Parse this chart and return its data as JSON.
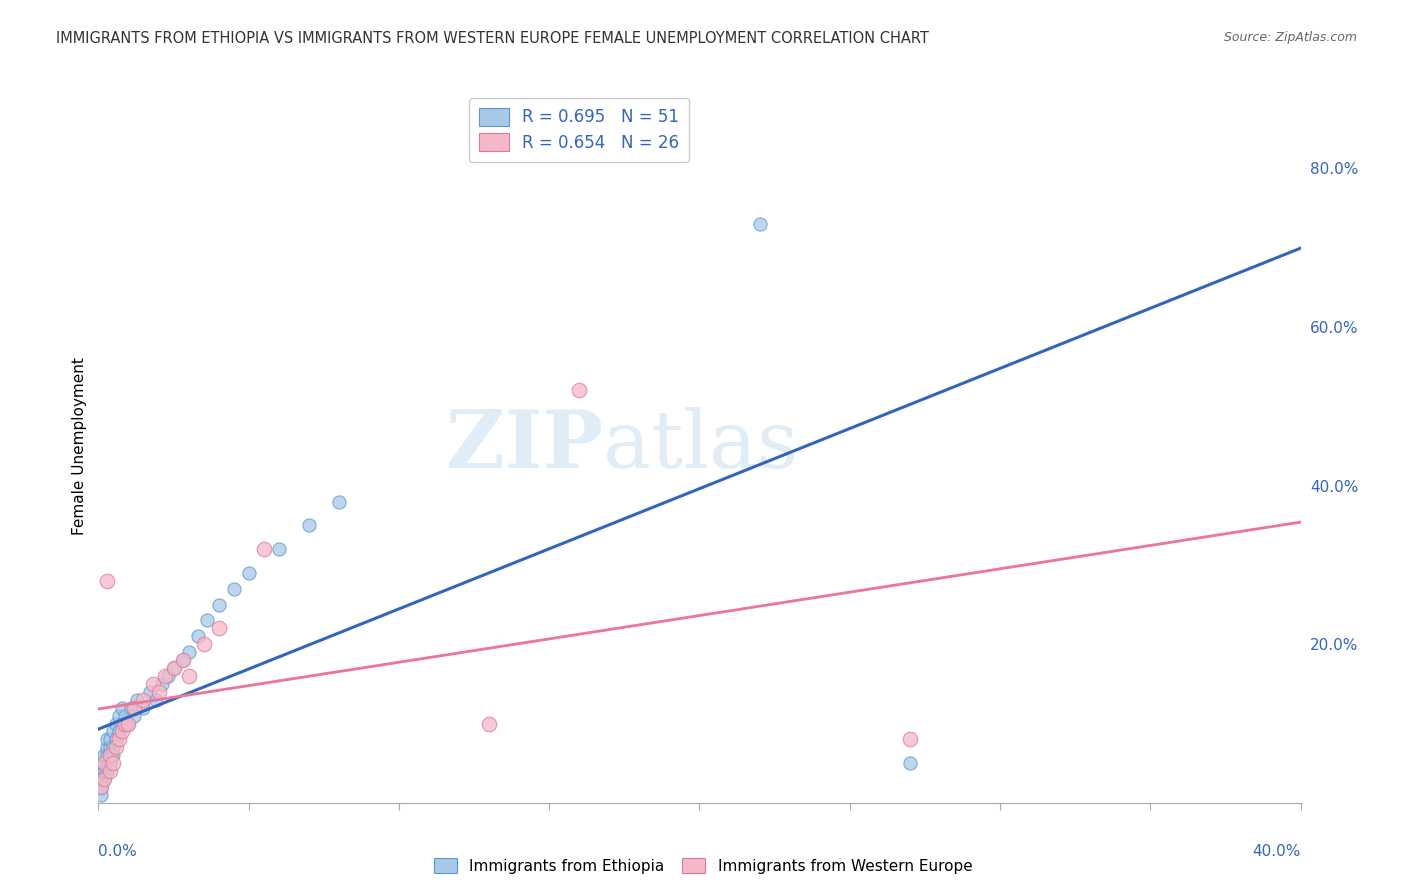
{
  "title": "IMMIGRANTS FROM ETHIOPIA VS IMMIGRANTS FROM WESTERN EUROPE FEMALE UNEMPLOYMENT CORRELATION CHART",
  "source": "Source: ZipAtlas.com",
  "ylabel": "Female Unemployment",
  "right_ytick_labels": [
    "",
    "20.0%",
    "40.0%",
    "60.0%",
    "80.0%"
  ],
  "right_yticks": [
    0.0,
    0.2,
    0.4,
    0.6,
    0.8
  ],
  "legend_r1": "R = 0.695",
  "legend_n1": "N = 51",
  "legend_r2": "R = 0.654",
  "legend_n2": "N = 26",
  "legend_label1": "Immigrants from Ethiopia",
  "legend_label2": "Immigrants from Western Europe",
  "color_blue": "#a8c8e8",
  "color_blue_edge": "#5599cc",
  "color_blue_line": "#3366bb",
  "color_pink": "#f5b8c8",
  "color_pink_edge": "#dd7799",
  "color_pink_line": "#ee7799",
  "color_dashed": "#bbbbbb",
  "color_text_blue": "#3366bb",
  "color_grid": "#cccccc",
  "xlim": [
    0.0,
    0.4
  ],
  "ylim": [
    0.0,
    0.9
  ],
  "ethiopia_x": [
    0.001,
    0.001,
    0.001,
    0.001,
    0.002,
    0.002,
    0.002,
    0.002,
    0.002,
    0.002,
    0.003,
    0.003,
    0.003,
    0.003,
    0.003,
    0.004,
    0.004,
    0.004,
    0.004,
    0.005,
    0.005,
    0.005,
    0.006,
    0.006,
    0.007,
    0.007,
    0.008,
    0.008,
    0.009,
    0.01,
    0.011,
    0.012,
    0.013,
    0.015,
    0.017,
    0.019,
    0.021,
    0.023,
    0.025,
    0.028,
    0.03,
    0.033,
    0.036,
    0.04,
    0.045,
    0.05,
    0.06,
    0.07,
    0.08,
    0.22,
    0.27
  ],
  "ethiopia_y": [
    0.01,
    0.02,
    0.02,
    0.03,
    0.03,
    0.04,
    0.04,
    0.05,
    0.05,
    0.06,
    0.04,
    0.05,
    0.06,
    0.07,
    0.08,
    0.05,
    0.06,
    0.07,
    0.08,
    0.06,
    0.07,
    0.09,
    0.08,
    0.1,
    0.09,
    0.11,
    0.1,
    0.12,
    0.11,
    0.1,
    0.12,
    0.11,
    0.13,
    0.12,
    0.14,
    0.13,
    0.15,
    0.16,
    0.17,
    0.18,
    0.19,
    0.21,
    0.23,
    0.25,
    0.27,
    0.29,
    0.32,
    0.35,
    0.38,
    0.73,
    0.05
  ],
  "western_europe_x": [
    0.001,
    0.002,
    0.002,
    0.003,
    0.004,
    0.004,
    0.005,
    0.006,
    0.007,
    0.008,
    0.009,
    0.01,
    0.012,
    0.015,
    0.018,
    0.02,
    0.022,
    0.025,
    0.028,
    0.03,
    0.035,
    0.04,
    0.055,
    0.13,
    0.16,
    0.27
  ],
  "western_europe_y": [
    0.02,
    0.03,
    0.05,
    0.28,
    0.04,
    0.06,
    0.05,
    0.07,
    0.08,
    0.09,
    0.1,
    0.1,
    0.12,
    0.13,
    0.15,
    0.14,
    0.16,
    0.17,
    0.18,
    0.16,
    0.2,
    0.22,
    0.32,
    0.1,
    0.52,
    0.08
  ]
}
